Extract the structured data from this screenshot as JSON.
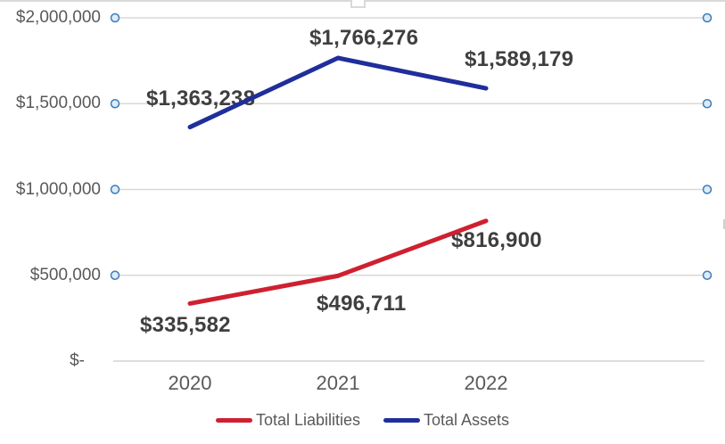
{
  "chart_data": {
    "type": "line",
    "title": "",
    "xlabel": "",
    "ylabel": "",
    "categories": [
      "2020",
      "2021",
      "2022"
    ],
    "series": [
      {
        "name": "Total Liabilities",
        "color": "#CF2030",
        "values": [
          335582,
          496711,
          816900
        ],
        "point_labels": [
          "$335,582",
          "$496,711",
          "$816,900"
        ]
      },
      {
        "name": "Total Assets",
        "color": "#202E9B",
        "values": [
          1363238,
          1766276,
          1589179
        ],
        "point_labels": [
          "$1,363,238",
          "$1,766,276",
          "$1,589,179"
        ]
      }
    ],
    "y_axis": {
      "min": 0,
      "max": 2000000,
      "step": 500000,
      "tick_values": [
        2000000,
        1500000,
        1000000,
        500000,
        0
      ],
      "tick_labels": [
        "$2,000,000",
        "$1,500,000",
        "$1,000,000",
        "$500,000",
        "$-"
      ]
    },
    "ylim": [
      0,
      2000000
    ],
    "grid": {
      "visible": true,
      "color": "#D9D9D9",
      "endpoint_marker": {
        "fill": "#DEEBF7",
        "stroke": "#3E7CB8"
      }
    },
    "legend": {
      "position": "bottom",
      "items": [
        "Total Liabilities",
        "Total Assets"
      ]
    },
    "text_colors": {
      "axis": "#595959",
      "data_label": "#3F3F3F",
      "legend": "#595959"
    }
  }
}
